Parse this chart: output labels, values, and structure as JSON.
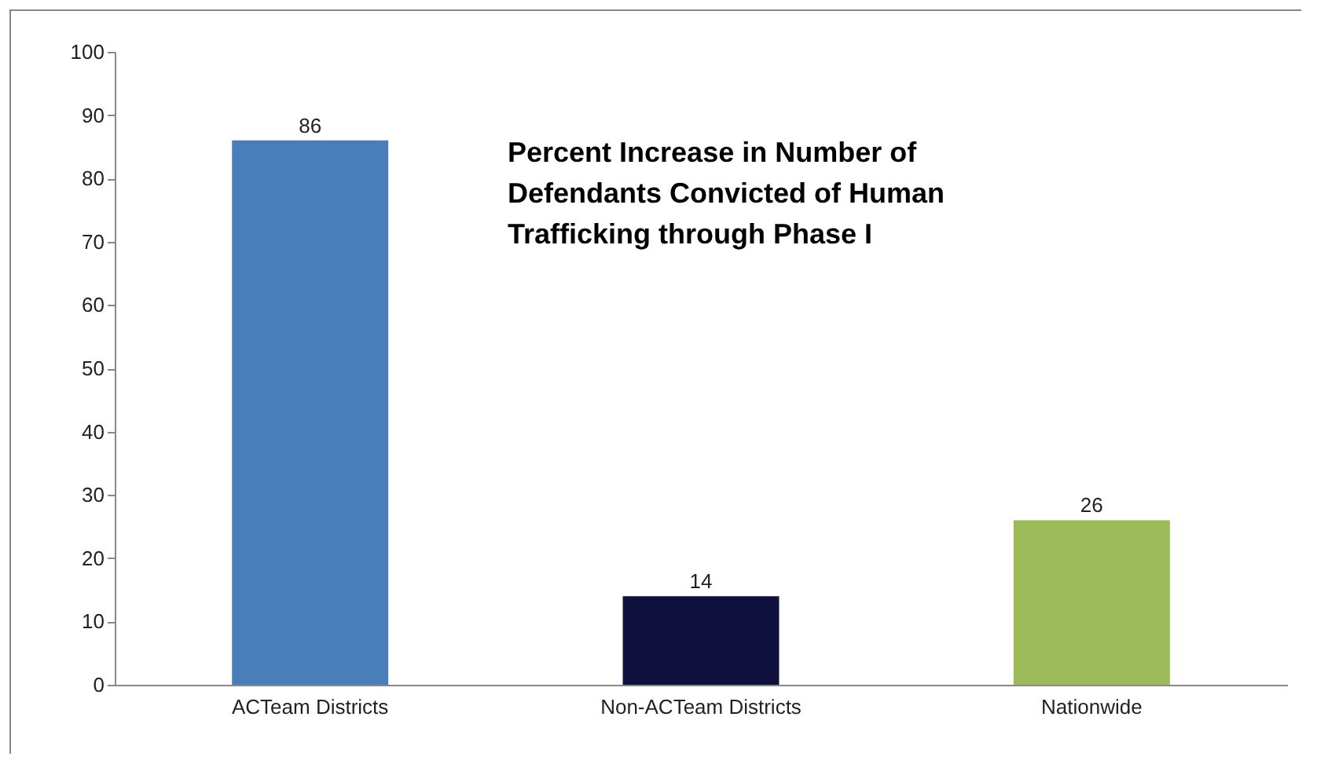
{
  "chart_data": {
    "type": "bar",
    "title": "Percent Increase in Number of Defendants Convicted of Human Trafficking through Phase I",
    "categories": [
      "ACTeam Districts",
      "Non-ACTeam Districts",
      "Nationwide"
    ],
    "values": [
      86,
      14,
      26
    ],
    "colors": [
      "#4a7ebb",
      "#10103f",
      "#9bbb59"
    ],
    "ylim": [
      0,
      100
    ],
    "yticks": [
      0,
      10,
      20,
      30,
      40,
      50,
      60,
      70,
      80,
      90,
      100
    ],
    "grid": false,
    "data_labels": true
  }
}
